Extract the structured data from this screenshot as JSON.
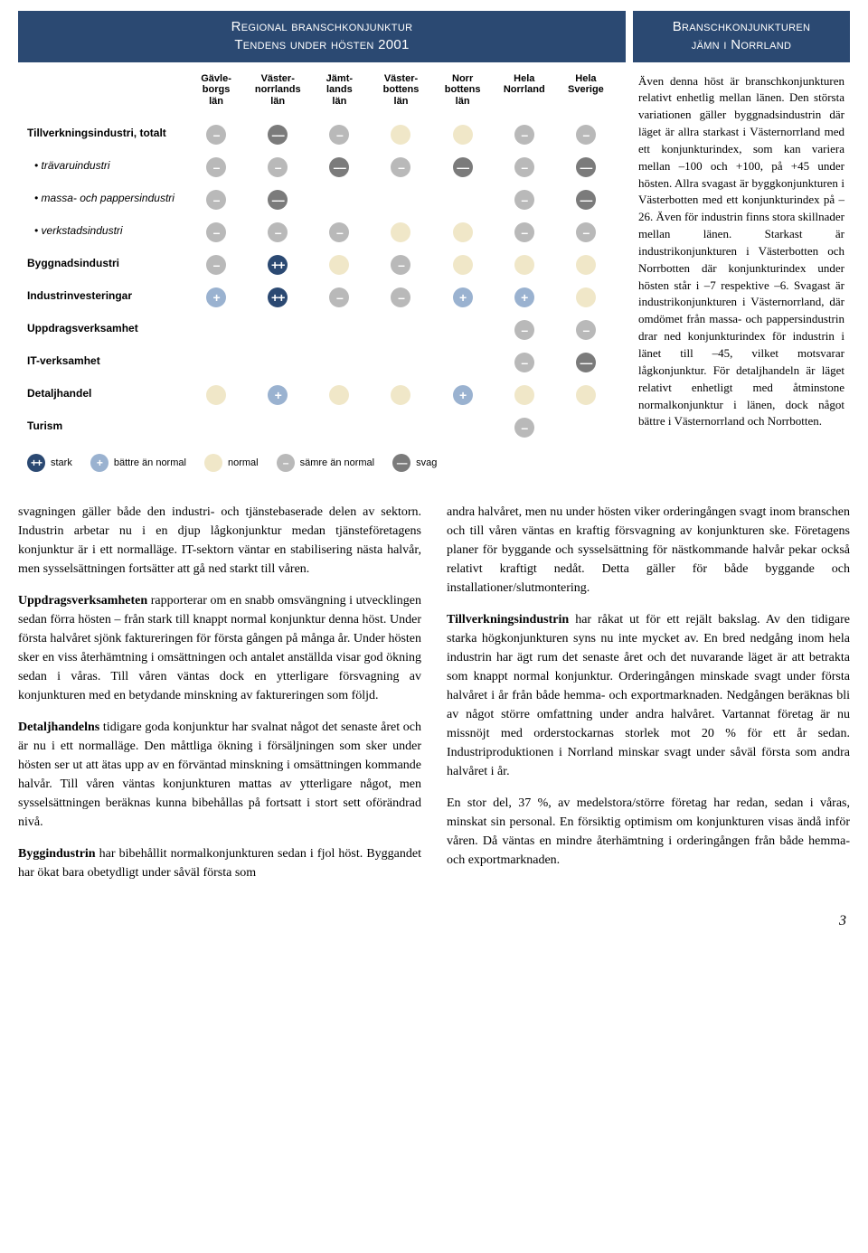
{
  "colors": {
    "header_bg": "#2b4972",
    "header_fg": "#ffffff",
    "dot_strong_pos": "#2b4972",
    "dot_pos": "#9ab2d0",
    "dot_neutral": "#f0e7c8",
    "dot_neg": "#b9b9b9",
    "dot_strong_neg": "#7b7b7b",
    "text": "#000000"
  },
  "chart": {
    "title_line1": "Regional branschkonjunktur",
    "title_line2": "Tendens under hösten 2001",
    "columns": [
      "Gävle-\nborgs\nlän",
      "Väster-\nnorrlands\nlän",
      "Jämt-\nlands\nlän",
      "Väster-\nbottens\nlän",
      "Norr\nbottens\nlän",
      "Hela\nNorrland",
      "Hela\nSverige"
    ],
    "rows": [
      {
        "label": "Tillverkningsindustri, totalt",
        "sub": false,
        "cells": [
          "neg",
          "sneg",
          "neg",
          "neu",
          "neu",
          "neg",
          "neg"
        ]
      },
      {
        "label": "• trävaruindustri",
        "sub": true,
        "cells": [
          "neg",
          "neg",
          "sneg",
          "neg",
          "sneg",
          "neg",
          "sneg"
        ]
      },
      {
        "label": "• massa- och pappersindustri",
        "sub": true,
        "cells": [
          "neg",
          "sneg",
          "",
          "",
          "",
          "neg",
          "sneg"
        ]
      },
      {
        "label": "• verkstadsindustri",
        "sub": true,
        "cells": [
          "neg",
          "neg",
          "neg",
          "neu",
          "neu",
          "neg",
          "neg"
        ]
      },
      {
        "label": "Byggnadsindustri",
        "sub": false,
        "cells": [
          "neg",
          "spos",
          "neu",
          "neg",
          "neu",
          "neu",
          "neu"
        ]
      },
      {
        "label": "Industrinvesteringar",
        "sub": false,
        "cells": [
          "pos",
          "spos",
          "neg",
          "neg",
          "pos",
          "pos",
          "neu"
        ]
      },
      {
        "label": "Uppdragsverksamhet",
        "sub": false,
        "cells": [
          "",
          "",
          "",
          "",
          "",
          "neg",
          "neg"
        ]
      },
      {
        "label": "IT-verksamhet",
        "sub": false,
        "cells": [
          "",
          "",
          "",
          "",
          "",
          "neg",
          "sneg"
        ]
      },
      {
        "label": "Detaljhandel",
        "sub": false,
        "cells": [
          "neu",
          "pos",
          "neu",
          "neu",
          "pos",
          "neu",
          "neu"
        ]
      },
      {
        "label": "Turism",
        "sub": false,
        "cells": [
          "",
          "",
          "",
          "",
          "",
          "neg",
          ""
        ]
      }
    ],
    "legend": [
      {
        "sev": "spos",
        "label": "stark"
      },
      {
        "sev": "pos",
        "label": "bättre än normal"
      },
      {
        "sev": "neu",
        "label": "normal"
      },
      {
        "sev": "neg",
        "label": "sämre än normal"
      },
      {
        "sev": "sneg",
        "label": "svag"
      }
    ]
  },
  "sidebar": {
    "title_line1": "Branschkonjunkturen",
    "title_line2": "jämn i Norrland",
    "body": "Även denna höst är branschkonjunkturen relativt enhetlig mellan länen. Den största variationen gäller byggnadsindustrin där läget är allra starkast i Västernorrland med ett konjunkturindex, som kan variera mellan –100 och +100, på +45 under hösten. Allra svagast är byggkonjunkturen i Västerbotten med ett konjunkturindex på –26. Även för industrin finns stora skillnader mellan länen. Starkast är industrikonjunkturen i Västerbotten och Norrbotten där konjunkturindex under hösten står i –7 respektive –6. Svagast är industrikonjunkturen i Västernorrland, där omdömet från massa- och pappersindustrin drar ned konjunkturindex för industrin i länet till –45, vilket motsvarar lågkonjunktur. För detaljhandeln är läget relativt enhetligt med åtminstone normalkonjunktur i länen, dock något bättre i Västernorrland och Norrbotten."
  },
  "body_text": {
    "left": [
      {
        "lead": "",
        "text": "svagningen gäller både den industri- och tjänstebaserade delen av sektorn. Industrin arbetar nu i en djup lågkonjunktur medan tjänsteföretagens konjunktur är i ett normalläge. IT-sektorn väntar en stabilisering nästa halvår, men sysselsättningen fortsätter att gå ned starkt till våren."
      },
      {
        "lead": "Uppdragsverksamheten",
        "text": " rapporterar om en snabb omsvängning i utvecklingen sedan förra hösten – från stark till knappt normal konjunktur denna höst. Under första halvåret sjönk faktureringen för första gången på många år. Under hösten sker en viss återhämtning i omsättningen och antalet anställda visar god ökning sedan i våras. Till våren väntas dock en ytterligare försvagning av konjunkturen med en betydande minskning av faktureringen som följd."
      },
      {
        "lead": "Detaljhandelns",
        "text": " tidigare goda konjunktur har svalnat något det senaste året och är nu i ett normalläge. Den måttliga ökning i försäljningen som sker under hösten ser ut att ätas upp av en förväntad minskning i omsättningen kommande halvår. Till våren väntas konjunkturen mattas av ytterligare något, men sysselsättningen beräknas kunna bibehållas på fortsatt i stort sett oförändrad nivå."
      },
      {
        "lead": "Byggindustrin",
        "text": " har bibehållit normalkonjunkturen sedan i fjol höst. Byggandet har ökat bara obetydligt under såväl första som"
      }
    ],
    "right": [
      {
        "lead": "",
        "text": "andra halvåret, men nu under hösten viker orderingången svagt inom branschen och till våren väntas en kraftig försvagning av konjunkturen ske. Företagens planer för byggande och sysselsättning för nästkommande halvår pekar också relativt kraftigt nedåt. Detta gäller för både byggande och installationer/slutmontering."
      },
      {
        "lead": "Tillverkningsindustrin",
        "text": " har råkat ut för ett rejält bakslag. Av den tidigare starka högkonjunkturen syns nu inte mycket av. En bred nedgång inom hela industrin har ägt rum det senaste året och det nuvarande läget är att betrakta som knappt normal konjunktur. Orderingången minskade svagt under första halvåret i år från både hemma- och exportmarknaden. Nedgången beräknas bli av något större omfattning under andra halvåret. Vartannat företag är nu missnöjt med orderstockarnas storlek mot 20 % för ett år sedan. Industriproduktionen i Norrland minskar svagt under såväl första som andra halvåret i år."
      },
      {
        "lead": "",
        "text": "En stor del, 37 %, av medelstora/större företag har redan, sedan i våras, minskat sin personal. En försiktig optimism om konjunkturen visas ändå inför våren. Då väntas en mindre återhämtning i orderingången från både hemma- och exportmarknaden."
      }
    ]
  },
  "page_number": "3",
  "glyphs": {
    "spos": "++",
    "pos": "+",
    "neu": "",
    "neg": "–",
    "sneg": "––"
  }
}
